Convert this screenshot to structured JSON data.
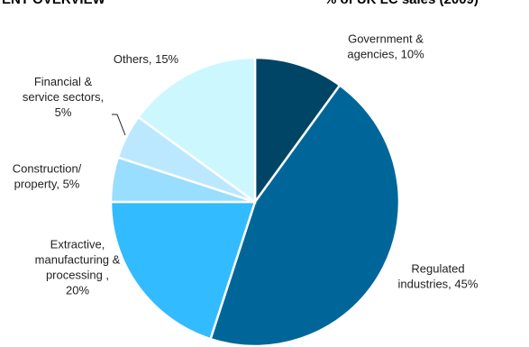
{
  "header": {
    "left_title": "ENT OVERVIEW",
    "right_title": "% of UK LC sales (2009)"
  },
  "chart_data": {
    "type": "pie",
    "title": "",
    "slices": [
      {
        "label": "Government & agencies, 10%",
        "lines": [
          "Government &",
          "agencies, 10%"
        ],
        "value": 10,
        "color": "#004466"
      },
      {
        "label": "Regulated industries, 45%",
        "lines": [
          "Regulated",
          "industries, 45%"
        ],
        "value": 45,
        "color": "#006699"
      },
      {
        "label": "Extractive, manufacturing & processing , 20%",
        "lines": [
          "Extractive,",
          "manufacturing &",
          "processing ,",
          "20%"
        ],
        "value": 20,
        "color": "#33bbff"
      },
      {
        "label": "Construction/ property, 5%",
        "lines": [
          "Construction/",
          "property, 5%"
        ],
        "value": 5,
        "color": "#99ddff"
      },
      {
        "label": "Financial & service sectors, 5%",
        "lines": [
          "Financial &",
          "service sectors,",
          "5%"
        ],
        "value": 5,
        "color": "#bbe8ff"
      },
      {
        "label": "Others, 15%",
        "lines": [
          "Others, 15%"
        ],
        "value": 15,
        "color": "#ccf7ff"
      }
    ]
  }
}
